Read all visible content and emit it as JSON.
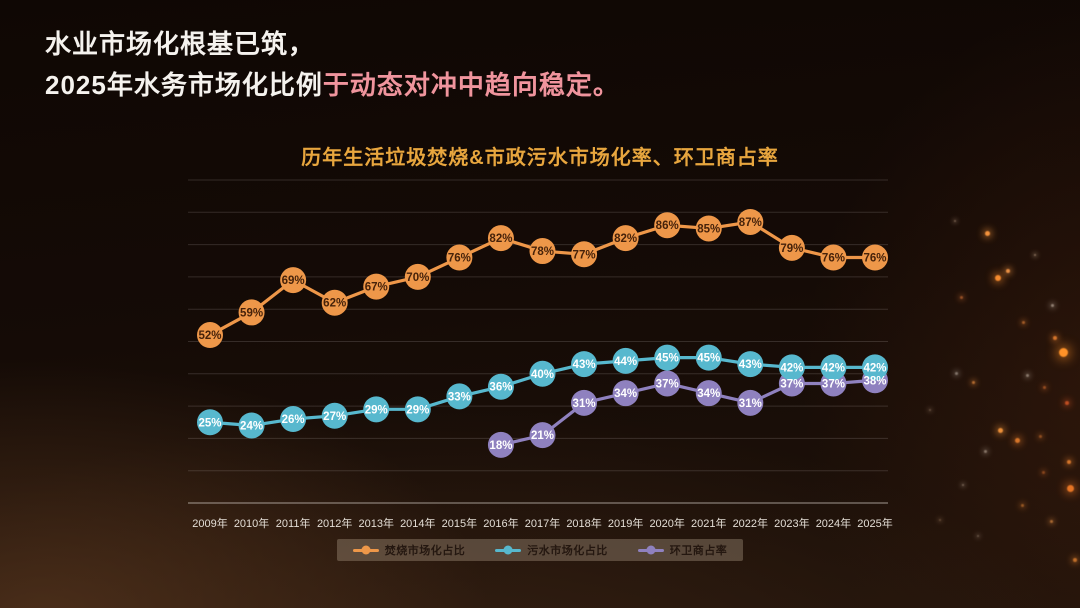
{
  "headline": {
    "line1": "水业市场化根基已筑，",
    "line2_normal": "2025年水务市场化比例",
    "line2_highlight": "于动态对冲中趋向稳定。",
    "highlight_color": "#f0949d"
  },
  "chart_data": {
    "type": "line",
    "title": "历年生活垃圾焚烧&市政污水市场化率、环卫商占率",
    "title_color": "#e8a63e",
    "categories": [
      "2009年",
      "2010年",
      "2011年",
      "2012年",
      "2013年",
      "2014年",
      "2015年",
      "2016年",
      "2017年",
      "2018年",
      "2019年",
      "2020年",
      "2021年",
      "2022年",
      "2023年",
      "2024年",
      "2025年"
    ],
    "unit": "%",
    "ylim": [
      0,
      100
    ],
    "grid": {
      "horizontal": true,
      "interval": 10
    },
    "legend_position": "bottom",
    "series": [
      {
        "name": "焚烧市场化占比",
        "color": "#ee9749",
        "label_color": "#46220a",
        "values": [
          52,
          59,
          69,
          62,
          67,
          70,
          76,
          82,
          78,
          77,
          82,
          86,
          85,
          87,
          79,
          76,
          76
        ]
      },
      {
        "name": "污水市场化占比",
        "color": "#57b8ce",
        "label_color": "#ffffff",
        "values": [
          25,
          24,
          26,
          27,
          29,
          29,
          33,
          36,
          40,
          43,
          44,
          45,
          45,
          43,
          42,
          42,
          42
        ]
      },
      {
        "name": "环卫商占率",
        "color": "#8f81bf",
        "label_color": "#ffffff",
        "values": [
          null,
          null,
          null,
          null,
          null,
          null,
          null,
          18,
          21,
          31,
          34,
          37,
          34,
          31,
          37,
          37,
          38
        ]
      }
    ]
  }
}
